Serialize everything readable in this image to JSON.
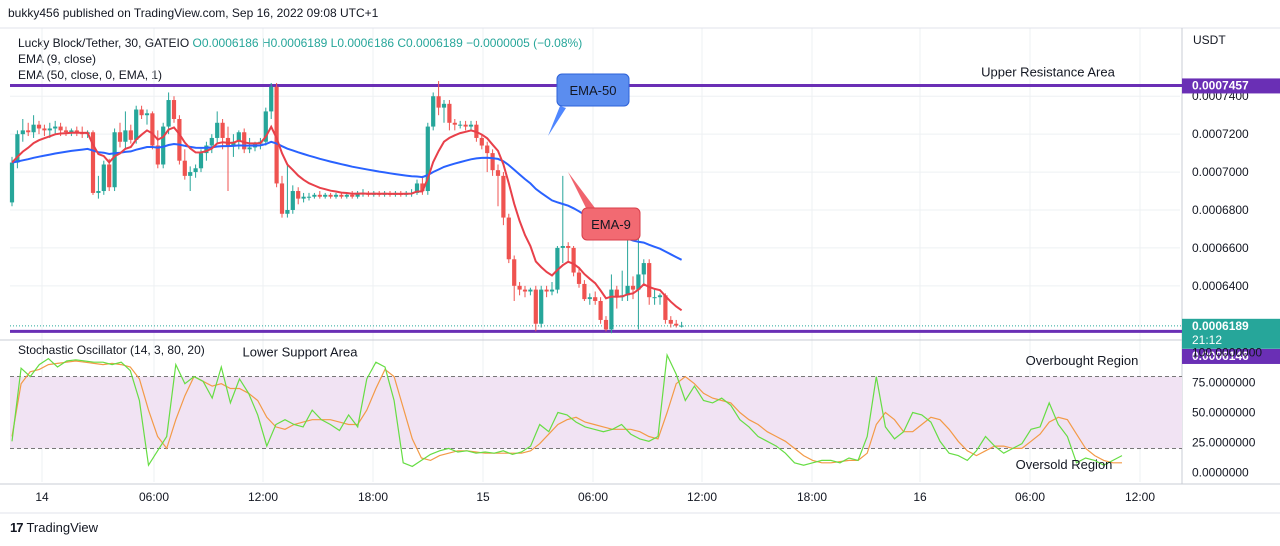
{
  "header": {
    "publish_line": "bukky456 published on TradingView.com, Sep 16, 2022 09:08 UTC+1"
  },
  "legend": {
    "symbol": "Lucky Block/Tether, 30, GATEIO",
    "ohlc": "O0.0006186 H0.0006189 L0.0006186 C0.0006189 −0.0000005 (−0.08%)",
    "ema9": "EMA (9, close)",
    "ema50": "EMA (50, close, 0, EMA, 1)"
  },
  "stoch_legend": "Stochastic Oscillator (14, 3, 80, 20)",
  "footer": {
    "brand": "TradingView"
  },
  "colors": {
    "bull": "#26a69a",
    "bear": "#ef5350",
    "ema9": "#e8404a",
    "ema50": "#2962ff",
    "level": "#6a2fb5",
    "stoch_k": "#66dd44",
    "stoch_d": "#f39a47",
    "band": "#f1e3f3"
  },
  "chart_data": [
    {
      "type": "candlestick",
      "currency": "USDT",
      "ylim": [
        0.000613,
        0.000776
      ],
      "y_ticks": [
        "0.0007400",
        "0.0007200",
        "0.0007000",
        "0.0006800",
        "0.0006600",
        "0.0006400"
      ],
      "x_ticks": [
        "14",
        "06:00",
        "12:00",
        "18:00",
        "15",
        "06:00",
        "12:00",
        "18:00",
        "16",
        "06:00",
        "12:00"
      ],
      "price_badges": [
        {
          "value": "0.0007457",
          "price": 0.0007457
        },
        {
          "value": "0.0006189",
          "sub": "21:12",
          "price": 0.0006189
        },
        {
          "value": "0.0006146",
          "price": 0.0006146
        }
      ],
      "levels": [
        {
          "label": "Upper Resistance Area",
          "price": 0.0007457
        },
        {
          "label": "Lower Support Area",
          "price": 0.000616
        }
      ],
      "callouts": [
        {
          "label": "EMA-50",
          "target": "ema50"
        },
        {
          "label": "EMA-9",
          "target": "ema9"
        }
      ],
      "candles_ohlc": [
        [
          0.000684,
          0.000708,
          0.000682,
          0.000705
        ],
        [
          0.000705,
          0.000722,
          0.000702,
          0.00072
        ],
        [
          0.00072,
          0.000728,
          0.000716,
          0.000722
        ],
        [
          0.000722,
          0.000726,
          0.000719,
          0.000721
        ],
        [
          0.000721,
          0.00073,
          0.000718,
          0.000725
        ],
        [
          0.000725,
          0.000727,
          0.00072,
          0.000723
        ],
        [
          0.000723,
          0.000725,
          0.000719,
          0.000722
        ],
        [
          0.000722,
          0.000726,
          0.000718,
          0.000723
        ],
        [
          0.000723,
          0.000727,
          0.00072,
          0.000724
        ],
        [
          0.000724,
          0.000726,
          0.000719,
          0.000722
        ],
        [
          0.000722,
          0.000724,
          0.000719,
          0.000721
        ],
        [
          0.000721,
          0.000723,
          0.000719,
          0.000722
        ],
        [
          0.000722,
          0.000724,
          0.000719,
          0.000721
        ],
        [
          0.000721,
          0.000724,
          0.000718,
          0.00072
        ],
        [
          0.00072,
          0.000722,
          0.000718,
          0.000721
        ],
        [
          0.000721,
          0.000722,
          0.000688,
          0.000689
        ],
        [
          0.000689,
          0.000698,
          0.000686,
          0.00069
        ],
        [
          0.00069,
          0.000706,
          0.000688,
          0.000704
        ],
        [
          0.000704,
          0.000707,
          0.00069,
          0.000692
        ],
        [
          0.000692,
          0.000723,
          0.00069,
          0.000721
        ],
        [
          0.000721,
          0.000726,
          0.000713,
          0.000716
        ],
        [
          0.000716,
          0.000732,
          0.000712,
          0.000722
        ],
        [
          0.000722,
          0.000725,
          0.000715,
          0.000717
        ],
        [
          0.000717,
          0.000735,
          0.000715,
          0.000733
        ],
        [
          0.000733,
          0.000735,
          0.000728,
          0.00073
        ],
        [
          0.00073,
          0.000733,
          0.000725,
          0.000731
        ],
        [
          0.000731,
          0.000732,
          0.000712,
          0.000714
        ],
        [
          0.000714,
          0.000722,
          0.000702,
          0.000704
        ],
        [
          0.000704,
          0.000726,
          0.000702,
          0.000724
        ],
        [
          0.000724,
          0.000742,
          0.00072,
          0.000738
        ],
        [
          0.000738,
          0.00074,
          0.000726,
          0.000728
        ],
        [
          0.000728,
          0.00073,
          0.000704,
          0.000706
        ],
        [
          0.000706,
          0.000712,
          0.000696,
          0.000698
        ],
        [
          0.000698,
          0.000703,
          0.00069,
          0.0007
        ],
        [
          0.0007,
          0.000704,
          0.000697,
          0.000702
        ],
        [
          0.000702,
          0.000712,
          0.0007,
          0.00071
        ],
        [
          0.00071,
          0.000716,
          0.000706,
          0.000714
        ],
        [
          0.000714,
          0.00072,
          0.00071,
          0.000718
        ],
        [
          0.000718,
          0.000732,
          0.000715,
          0.000726
        ],
        [
          0.000726,
          0.000728,
          0.000712,
          0.000718
        ],
        [
          0.000718,
          0.000724,
          0.00069,
          0.000714
        ],
        [
          0.000714,
          0.00072,
          0.000708,
          0.000716
        ],
        [
          0.000716,
          0.000722,
          0.000712,
          0.000721
        ],
        [
          0.000721,
          0.000723,
          0.00071,
          0.000712
        ],
        [
          0.000712,
          0.000718,
          0.00071,
          0.000713
        ],
        [
          0.000713,
          0.000716,
          0.000711,
          0.000715
        ],
        [
          0.000715,
          0.000718,
          0.000712,
          0.000716
        ],
        [
          0.000716,
          0.000734,
          0.000714,
          0.000732
        ],
        [
          0.000732,
          0.000747,
          0.000728,
          0.000745
        ],
        [
          0.000745,
          0.000747,
          0.000692,
          0.000694
        ],
        [
          0.000694,
          0.000698,
          0.000676,
          0.000678
        ],
        [
          0.000678,
          0.000704,
          0.000676,
          0.00068
        ],
        [
          0.00068,
          0.000693,
          0.000678,
          0.00069
        ],
        [
          0.00069,
          0.000692,
          0.000683,
          0.000686
        ],
        [
          0.000686,
          0.000689,
          0.000684,
          0.000687
        ],
        [
          0.000687,
          0.000689,
          0.000685,
          0.000687
        ],
        [
          0.000687,
          0.000689,
          0.000686,
          0.000688
        ],
        [
          0.000688,
          0.00069,
          0.000686,
          0.000687
        ],
        [
          0.000687,
          0.000689,
          0.000686,
          0.000688
        ],
        [
          0.000688,
          0.000689,
          0.000686,
          0.000687
        ],
        [
          0.000687,
          0.000689,
          0.000686,
          0.000688
        ],
        [
          0.000688,
          0.000689,
          0.000686,
          0.000687
        ],
        [
          0.000687,
          0.000689,
          0.000686,
          0.000688
        ],
        [
          0.000688,
          0.00069,
          0.000686,
          0.000687
        ],
        [
          0.000687,
          0.00069,
          0.000686,
          0.000689
        ],
        [
          0.000689,
          0.000691,
          0.000687,
          0.000689
        ],
        [
          0.000689,
          0.00069,
          0.000687,
          0.000688
        ],
        [
          0.000688,
          0.00069,
          0.000687,
          0.000689
        ],
        [
          0.000689,
          0.00069,
          0.000687,
          0.000688
        ],
        [
          0.000688,
          0.00069,
          0.000687,
          0.000689
        ],
        [
          0.000689,
          0.00069,
          0.000687,
          0.000688
        ],
        [
          0.000688,
          0.00069,
          0.000687,
          0.000689
        ],
        [
          0.000689,
          0.00069,
          0.000687,
          0.000688
        ],
        [
          0.000688,
          0.00069,
          0.000687,
          0.000689
        ],
        [
          0.000689,
          0.000691,
          0.000687,
          0.000689
        ],
        [
          0.000689,
          0.000696,
          0.000688,
          0.000694
        ],
        [
          0.000694,
          0.000698,
          0.000688,
          0.00069
        ],
        [
          0.00069,
          0.000726,
          0.000688,
          0.000724
        ],
        [
          0.000724,
          0.000742,
          0.000722,
          0.00074
        ],
        [
          0.00074,
          0.000748,
          0.00073,
          0.000734
        ],
        [
          0.000734,
          0.000738,
          0.000726,
          0.000736
        ],
        [
          0.000736,
          0.000738,
          0.000722,
          0.000726
        ],
        [
          0.000726,
          0.000728,
          0.000722,
          0.000725
        ],
        [
          0.000725,
          0.000727,
          0.000723,
          0.000725
        ],
        [
          0.000725,
          0.000727,
          0.000722,
          0.000724
        ],
        [
          0.000724,
          0.000727,
          0.000722,
          0.000725
        ],
        [
          0.000725,
          0.000727,
          0.000716,
          0.000718
        ],
        [
          0.000718,
          0.00072,
          0.000712,
          0.000714
        ],
        [
          0.000714,
          0.000716,
          0.0007,
          0.00071
        ],
        [
          0.00071,
          0.000712,
          0.000698,
          0.000701
        ],
        [
          0.000701,
          0.000704,
          0.000682,
          0.000698
        ],
        [
          0.000698,
          0.0007,
          0.000672,
          0.000676
        ],
        [
          0.000676,
          0.000678,
          0.000652,
          0.000654
        ],
        [
          0.000654,
          0.000656,
          0.000632,
          0.00064
        ],
        [
          0.00064,
          0.000642,
          0.000635,
          0.000638
        ],
        [
          0.000638,
          0.00064,
          0.000634,
          0.000637
        ],
        [
          0.000637,
          0.000639,
          0.000635,
          0.000638
        ],
        [
          0.000638,
          0.00064,
          0.000616,
          0.00062
        ],
        [
          0.00062,
          0.00064,
          0.000618,
          0.000638
        ],
        [
          0.000638,
          0.00064,
          0.000634,
          0.000637
        ],
        [
          0.000637,
          0.000642,
          0.000635,
          0.000638
        ],
        [
          0.000638,
          0.000661,
          0.000636,
          0.00066
        ],
        [
          0.00066,
          0.000698,
          0.000652,
          0.000661
        ],
        [
          0.000661,
          0.000663,
          0.000652,
          0.00066
        ],
        [
          0.00066,
          0.000661,
          0.000645,
          0.000647
        ],
        [
          0.000647,
          0.00065,
          0.000639,
          0.000641
        ],
        [
          0.000641,
          0.000643,
          0.000632,
          0.000633
        ],
        [
          0.000633,
          0.000636,
          0.00063,
          0.000634
        ],
        [
          0.000634,
          0.000637,
          0.00063,
          0.000632
        ],
        [
          0.000632,
          0.000634,
          0.00062,
          0.000622
        ],
        [
          0.000622,
          0.000624,
          0.000616,
          0.000617
        ],
        [
          0.000617,
          0.000646,
          0.000615,
          0.000638
        ],
        [
          0.000638,
          0.00064,
          0.000628,
          0.000634
        ],
        [
          0.000634,
          0.000648,
          0.000632,
          0.000635
        ],
        [
          0.000635,
          0.000666,
          0.000632,
          0.00064
        ],
        [
          0.00064,
          0.000645,
          0.000633,
          0.000638
        ],
        [
          0.000638,
          0.000678,
          0.000617,
          0.000646
        ],
        [
          0.000646,
          0.000654,
          0.00064,
          0.000652
        ],
        [
          0.000652,
          0.000654,
          0.00063,
          0.000634
        ],
        [
          0.000634,
          0.000638,
          0.00063,
          0.000634
        ],
        [
          0.000634,
          0.000636,
          0.00063,
          0.000635
        ],
        [
          0.000635,
          0.000636,
          0.00062,
          0.000622
        ],
        [
          0.000622,
          0.000624,
          0.000618,
          0.00062
        ],
        [
          0.00062,
          0.000622,
          0.000618,
          0.000619
        ],
        [
          0.000619,
          0.000621,
          0.000618,
          0.000619
        ]
      ]
    },
    {
      "type": "line",
      "title": "Stochastic Oscillator (14, 3, 80, 20)",
      "ylim": [
        -8,
        108
      ],
      "y_ticks": [
        "100.0000000",
        "75.0000000",
        "50.0000000",
        "25.0000000",
        "0.0000000"
      ],
      "bands": [
        80,
        20
      ],
      "annotations": [
        "Overbought Region",
        "Oversold Region"
      ],
      "series_k": [
        26,
        87,
        80,
        90,
        95,
        88,
        93,
        94,
        93,
        92,
        92,
        90,
        92,
        85,
        60,
        6,
        18,
        30,
        90,
        74,
        80,
        76,
        62,
        88,
        58,
        78,
        66,
        48,
        22,
        40,
        44,
        40,
        38,
        52,
        44,
        40,
        35,
        48,
        38,
        78,
        92,
        88,
        60,
        8,
        5,
        10,
        15,
        18,
        20,
        17,
        18,
        16,
        17,
        16,
        18,
        15,
        17,
        22,
        40,
        34,
        50,
        48,
        42,
        38,
        36,
        34,
        36,
        40,
        32,
        28,
        26,
        30,
        98,
        82,
        60,
        72,
        60,
        58,
        62,
        56,
        44,
        38,
        30,
        26,
        22,
        16,
        8,
        6,
        8,
        10,
        10,
        8,
        12,
        10,
        30,
        80,
        38,
        28,
        34,
        50,
        48,
        42,
        26,
        16,
        14,
        10,
        18,
        30,
        22,
        16,
        20,
        24,
        36,
        38,
        58,
        40,
        30,
        8,
        12,
        10,
        6,
        10,
        14
      ],
      "series_d": [
        30,
        74,
        84,
        86,
        90,
        91,
        92,
        93,
        92,
        91,
        90,
        91,
        90,
        88,
        78,
        52,
        30,
        20,
        44,
        64,
        80,
        76,
        72,
        74,
        70,
        70,
        66,
        60,
        46,
        38,
        36,
        40,
        42,
        44,
        44,
        44,
        42,
        40,
        40,
        52,
        70,
        86,
        80,
        54,
        28,
        12,
        10,
        14,
        16,
        18,
        18,
        17,
        16,
        16,
        16,
        16,
        16,
        18,
        24,
        32,
        40,
        44,
        46,
        42,
        40,
        38,
        36,
        36,
        36,
        34,
        30,
        28,
        50,
        74,
        80,
        74,
        66,
        62,
        60,
        58,
        50,
        44,
        40,
        34,
        30,
        26,
        20,
        14,
        10,
        8,
        8,
        9,
        10,
        10,
        16,
        40,
        50,
        44,
        34,
        34,
        40,
        46,
        44,
        36,
        26,
        18,
        14,
        18,
        22,
        22,
        20,
        20,
        26,
        32,
        42,
        46,
        44,
        32,
        20,
        14,
        10,
        8,
        8
      ]
    }
  ]
}
